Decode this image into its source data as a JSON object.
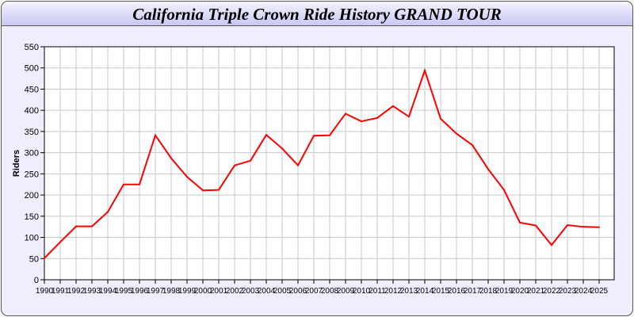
{
  "chart_data": {
    "type": "line",
    "title": "California Triple Crown Ride History GRAND TOUR",
    "xlabel": "",
    "ylabel": "Riders",
    "ylim": [
      0,
      550
    ],
    "yticks": [
      0,
      50,
      100,
      150,
      200,
      250,
      300,
      350,
      400,
      450,
      500,
      550
    ],
    "grid": true,
    "x": [
      1990,
      1991,
      1992,
      1993,
      1994,
      1995,
      1996,
      1997,
      1998,
      1999,
      2000,
      2001,
      2002,
      2003,
      2004,
      2005,
      2006,
      2007,
      2008,
      2009,
      2010,
      2011,
      2012,
      2013,
      2014,
      2015,
      2016,
      2017,
      2018,
      2019,
      2020,
      2021,
      2022,
      2023,
      2024,
      2025
    ],
    "series": [
      {
        "color": "#ff0000",
        "values": [
          51,
          89,
          126,
          126,
          160,
          225,
          225,
          341,
          287,
          243,
          211,
          212,
          270,
          281,
          342,
          310,
          270,
          340,
          341,
          392,
          374,
          382,
          410,
          385,
          494,
          380,
          345,
          318,
          261,
          212,
          135,
          128,
          82,
          129,
          125,
          124
        ]
      }
    ]
  }
}
